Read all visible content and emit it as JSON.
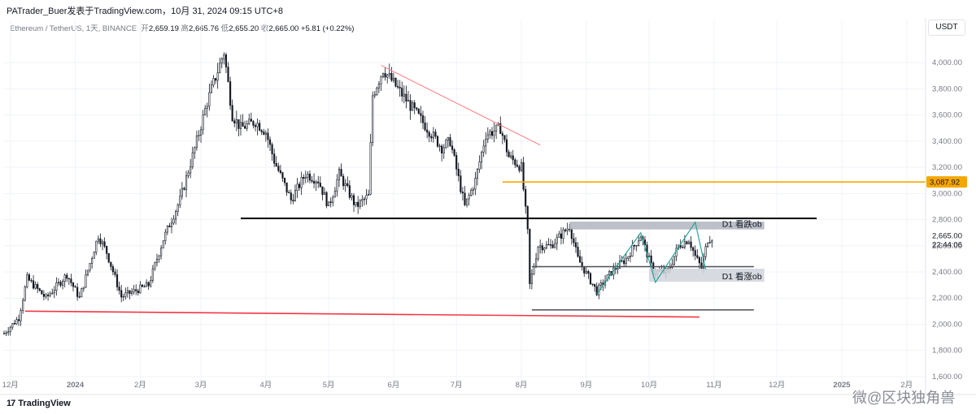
{
  "header": {
    "attribution": "PATrader_Buer发表于TradingView.com，10月 31, 2024 09:15 UTC+8"
  },
  "legend": {
    "symbol": "Ethereum / TetherUS, 1天, BINANCE",
    "open_label": "开",
    "open": "2,659.19",
    "high_label": "高",
    "high": "2,665.76",
    "low_label": "低",
    "low": "2,655.20",
    "close_label": "收",
    "close": "2,665.00",
    "change": "+5.81 (+0.22%)"
  },
  "currency_button": "USDT",
  "footer": {
    "logo_mark": "17",
    "logo_text": "TradingView",
    "watermark": "微@区块独角兽"
  },
  "colors": {
    "up": "#131722",
    "down": "#131722",
    "resistance_line": "#000000",
    "support_line_red": "#f23645",
    "target_line": "#f7a600",
    "trend_line": "#f77c80",
    "zone_fill": "#b2b5be",
    "zigzag": "#26a69a"
  },
  "chart_data": {
    "type": "candlestick",
    "symbol": "ETHUSDT",
    "interval": "1D",
    "ylim": [
      1500,
      4200
    ],
    "y_ticks": [
      4000,
      3800,
      3600,
      3400,
      3200,
      3000,
      2800,
      2600,
      2400,
      2200,
      2000,
      1800,
      1600
    ],
    "y_tick_labels": [
      "4,000.00",
      "3,800.00",
      "3,600.00",
      "3,400.00",
      "3,200.00",
      "3,000.00",
      "2,800.00",
      "2,600.00",
      "2,400.00",
      "2,200.00",
      "2,000.00",
      "1,800.00",
      "1,600.00"
    ],
    "x_start": "2023-11-28",
    "x_end": "2025-02-10",
    "x_ticks": [
      {
        "date": "2023-12-01",
        "label": "12月"
      },
      {
        "date": "2024-01-01",
        "label": "2024"
      },
      {
        "date": "2024-02-01",
        "label": "2月"
      },
      {
        "date": "2024-03-01",
        "label": "3月"
      },
      {
        "date": "2024-04-01",
        "label": "4月"
      },
      {
        "date": "2024-05-01",
        "label": "5月"
      },
      {
        "date": "2024-06-01",
        "label": "6月"
      },
      {
        "date": "2024-07-01",
        "label": "7月"
      },
      {
        "date": "2024-08-01",
        "label": "8月"
      },
      {
        "date": "2024-09-01",
        "label": "9月"
      },
      {
        "date": "2024-10-01",
        "label": "10月"
      },
      {
        "date": "2024-11-01",
        "label": "11月"
      },
      {
        "date": "2024-12-01",
        "label": "12月"
      },
      {
        "date": "2025-01-01",
        "label": "2025"
      },
      {
        "date": "2025-02-01",
        "label": "2月"
      }
    ],
    "price_path": [
      [
        "2023-11-28",
        1930
      ],
      [
        "2023-12-05",
        2050
      ],
      [
        "2023-12-09",
        2350
      ],
      [
        "2023-12-18",
        2200
      ],
      [
        "2023-12-28",
        2380
      ],
      [
        "2024-01-03",
        2200
      ],
      [
        "2024-01-12",
        2680
      ],
      [
        "2024-01-16",
        2550
      ],
      [
        "2024-01-23",
        2210
      ],
      [
        "2024-02-05",
        2300
      ],
      [
        "2024-02-12",
        2650
      ],
      [
        "2024-02-20",
        2950
      ],
      [
        "2024-02-28",
        3400
      ],
      [
        "2024-03-04",
        3700
      ],
      [
        "2024-03-12",
        4080
      ],
      [
        "2024-03-16",
        3600
      ],
      [
        "2024-03-20",
        3500
      ],
      [
        "2024-03-27",
        3550
      ],
      [
        "2024-04-01",
        3470
      ],
      [
        "2024-04-05",
        3250
      ],
      [
        "2024-04-13",
        2950
      ],
      [
        "2024-04-20",
        3150
      ],
      [
        "2024-04-26",
        3100
      ],
      [
        "2024-05-01",
        2900
      ],
      [
        "2024-05-06",
        3150
      ],
      [
        "2024-05-14",
        2900
      ],
      [
        "2024-05-20",
        2980
      ],
      [
        "2024-05-22",
        3750
      ],
      [
        "2024-05-27",
        3950
      ],
      [
        "2024-06-03",
        3800
      ],
      [
        "2024-06-10",
        3650
      ],
      [
        "2024-06-17",
        3500
      ],
      [
        "2024-06-24",
        3350
      ],
      [
        "2024-06-28",
        3400
      ],
      [
        "2024-07-05",
        2900
      ],
      [
        "2024-07-10",
        3100
      ],
      [
        "2024-07-15",
        3450
      ],
      [
        "2024-07-22",
        3500
      ],
      [
        "2024-07-26",
        3280
      ],
      [
        "2024-08-01",
        3200
      ],
      [
        "2024-08-04",
        2700
      ],
      [
        "2024-08-05",
        2300
      ],
      [
        "2024-08-09",
        2600
      ],
      [
        "2024-08-15",
        2600
      ],
      [
        "2024-08-24",
        2750
      ],
      [
        "2024-08-28",
        2500
      ],
      [
        "2024-09-06",
        2250
      ],
      [
        "2024-09-13",
        2400
      ],
      [
        "2024-09-20",
        2500
      ],
      [
        "2024-09-27",
        2680
      ],
      [
        "2024-10-03",
        2400
      ],
      [
        "2024-10-10",
        2400
      ],
      [
        "2024-10-15",
        2600
      ],
      [
        "2024-10-20",
        2650
      ],
      [
        "2024-10-23",
        2520
      ],
      [
        "2024-10-26",
        2430
      ],
      [
        "2024-10-29",
        2650
      ],
      [
        "2024-10-31",
        2665
      ]
    ],
    "annotations": {
      "resistance_line": {
        "price": 2810,
        "from": "2024-03-20",
        "to": "2024-12-20"
      },
      "support_red": {
        "from": [
          "2023-12-08",
          2100
        ],
        "to": [
          "2024-10-25",
          2055
        ]
      },
      "trend_line": {
        "from": [
          "2024-05-26",
          3980
        ],
        "to": [
          "2024-08-10",
          3370
        ]
      },
      "target_line": {
        "price": 3087.92,
        "from": "2024-07-23",
        "label": "3,087.92"
      },
      "range_mid": {
        "price": 2440,
        "from": "2024-08-06",
        "to": "2024-11-20"
      },
      "range_low": {
        "price": 2110,
        "from": "2024-08-06",
        "to": "2024-11-20"
      },
      "bearish_ob": {
        "from": "2024-08-24",
        "to": "2024-11-25",
        "top": 2785,
        "bottom": 2725,
        "label": "D1 看跌ob"
      },
      "bullish_ob": {
        "from": "2024-10-01",
        "to": "2024-11-25",
        "top": 2425,
        "bottom": 2325,
        "label": "D1 看涨ob"
      },
      "zigzag": [
        [
          "2024-09-06",
          2230
        ],
        [
          "2024-09-27",
          2700
        ],
        [
          "2024-10-04",
          2320
        ],
        [
          "2024-10-23",
          2780
        ],
        [
          "2024-10-28",
          2420
        ]
      ]
    },
    "last_price": {
      "value": "2,665.00",
      "countdown": "22:44:06"
    }
  }
}
